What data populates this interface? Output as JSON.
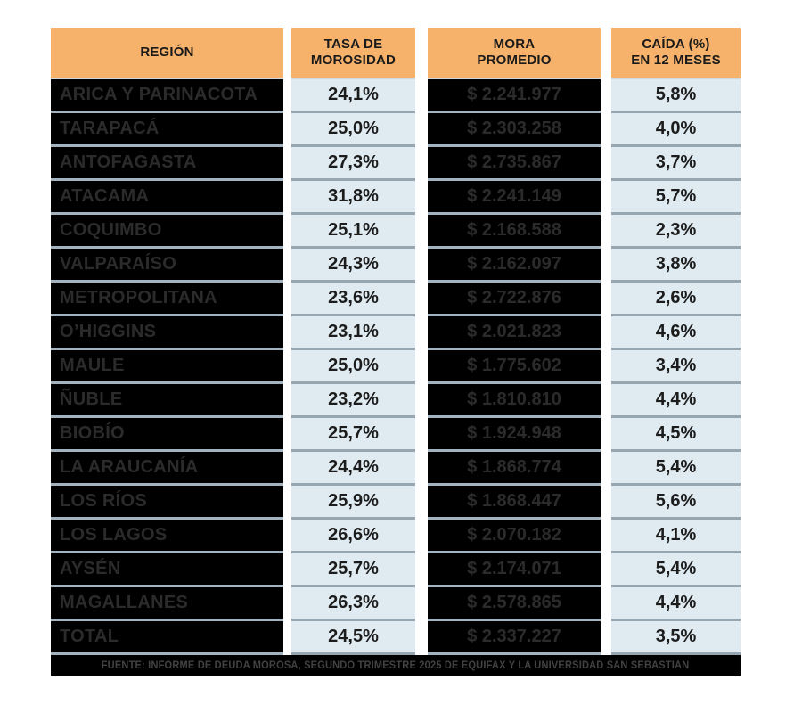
{
  "table": {
    "headers": [
      {
        "id": "region",
        "label": "REGIÓN"
      },
      {
        "id": "tasa",
        "label": "TASA DE\nMOROSIDAD"
      },
      {
        "id": "mora",
        "label": "MORA\nPROMEDIO"
      },
      {
        "id": "caida",
        "label": "CAÍDA (%)\nEN 12 MESES"
      }
    ],
    "rows": [
      {
        "region": "ARICA Y PARINACOTA",
        "tasa": "24,1%",
        "mora": "$ 2.241.977",
        "caida": "5,8%"
      },
      {
        "region": "TARAPACÁ",
        "tasa": "25,0%",
        "mora": "$ 2.303.258",
        "caida": "4,0%"
      },
      {
        "region": "ANTOFAGASTA",
        "tasa": "27,3%",
        "mora": "$ 2.735.867",
        "caida": "3,7%"
      },
      {
        "region": "ATACAMA",
        "tasa": "31,8%",
        "mora": "$ 2.241.149",
        "caida": "5,7%"
      },
      {
        "region": "COQUIMBO",
        "tasa": "25,1%",
        "mora": "$ 2.168.588",
        "caida": "2,3%"
      },
      {
        "region": "VALPARAÍSO",
        "tasa": "24,3%",
        "mora": "$ 2.162.097",
        "caida": "3,8%"
      },
      {
        "region": "METROPOLITANA",
        "tasa": "23,6%",
        "mora": "$ 2.722.876",
        "caida": "2,6%"
      },
      {
        "region": "O’HIGGINS",
        "tasa": "23,1%",
        "mora": "$ 2.021.823",
        "caida": "4,6%"
      },
      {
        "region": "MAULE",
        "tasa": "25,0%",
        "mora": "$ 1.775.602",
        "caida": "3,4%"
      },
      {
        "region": "ÑUBLE",
        "tasa": "23,2%",
        "mora": "$ 1.810.810",
        "caida": "4,4%"
      },
      {
        "region": "BIOBÍO",
        "tasa": "25,7%",
        "mora": "$ 1.924.948",
        "caida": "4,5%"
      },
      {
        "region": "LA ARAUCANÍA",
        "tasa": "24,4%",
        "mora": "$ 1.868.774",
        "caida": "5,4%"
      },
      {
        "region": "LOS RÍOS",
        "tasa": "25,9%",
        "mora": "$ 1.868.447",
        "caida": "5,6%"
      },
      {
        "region": "LOS LAGOS",
        "tasa": "26,6%",
        "mora": "$ 2.070.182",
        "caida": "4,1%"
      },
      {
        "region": "AYSÉN",
        "tasa": "25,7%",
        "mora": "$ 2.174.071",
        "caida": "5,4%"
      },
      {
        "region": "MAGALLANES",
        "tasa": "26,3%",
        "mora": "$ 2.578.865",
        "caida": "4,4%"
      },
      {
        "region": "TOTAL",
        "tasa": "24,5%",
        "mora": "$ 2.337.227",
        "caida": "3,5%"
      }
    ]
  },
  "footer": {
    "source": "FUENTE: INFORME DE DEUDA MOROSA, SEGUNDO TRIMESTRE 2025 DE EQUIFAX Y LA UNIVERSIDAD SAN SEBASTIÁN"
  },
  "colors": {
    "header_bg": "#F6B26B",
    "dark_cell_bg": "#000000",
    "dark_cell_text": "#2B2B2B",
    "light_cell_bg": "#DFEBF1",
    "light_cell_text": "#1C1C1C",
    "row_separator": "#9FAFBA",
    "footer_bg": "#000000",
    "footer_text": "#424242",
    "page_bg": "#FFFFFF"
  },
  "chart_data": {
    "type": "table",
    "title": "",
    "columns": [
      "REGIÓN",
      "TASA DE MOROSIDAD",
      "MORA PROMEDIO",
      "CAÍDA (%) EN 12 MESES"
    ],
    "rows": [
      {
        "region": "ARICA Y PARINACOTA",
        "tasa_morosidad_pct": 24.1,
        "mora_promedio_clp": 2241977,
        "caida_12m_pct": 5.8
      },
      {
        "region": "TARAPACÁ",
        "tasa_morosidad_pct": 25.0,
        "mora_promedio_clp": 2303258,
        "caida_12m_pct": 4.0
      },
      {
        "region": "ANTOFAGASTA",
        "tasa_morosidad_pct": 27.3,
        "mora_promedio_clp": 2735867,
        "caida_12m_pct": 3.7
      },
      {
        "region": "ATACAMA",
        "tasa_morosidad_pct": 31.8,
        "mora_promedio_clp": 2241149,
        "caida_12m_pct": 5.7
      },
      {
        "region": "COQUIMBO",
        "tasa_morosidad_pct": 25.1,
        "mora_promedio_clp": 2168588,
        "caida_12m_pct": 2.3
      },
      {
        "region": "VALPARAÍSO",
        "tasa_morosidad_pct": 24.3,
        "mora_promedio_clp": 2162097,
        "caida_12m_pct": 3.8
      },
      {
        "region": "METROPOLITANA",
        "tasa_morosidad_pct": 23.6,
        "mora_promedio_clp": 2722876,
        "caida_12m_pct": 2.6
      },
      {
        "region": "O’HIGGINS",
        "tasa_morosidad_pct": 23.1,
        "mora_promedio_clp": 2021823,
        "caida_12m_pct": 4.6
      },
      {
        "region": "MAULE",
        "tasa_morosidad_pct": 25.0,
        "mora_promedio_clp": 1775602,
        "caida_12m_pct": 3.4
      },
      {
        "region": "ÑUBLE",
        "tasa_morosidad_pct": 23.2,
        "mora_promedio_clp": 1810810,
        "caida_12m_pct": 4.4
      },
      {
        "region": "BIOBÍO",
        "tasa_morosidad_pct": 25.7,
        "mora_promedio_clp": 1924948,
        "caida_12m_pct": 4.5
      },
      {
        "region": "LA ARAUCANÍA",
        "tasa_morosidad_pct": 24.4,
        "mora_promedio_clp": 1868774,
        "caida_12m_pct": 5.4
      },
      {
        "region": "LOS RÍOS",
        "tasa_morosidad_pct": 25.9,
        "mora_promedio_clp": 1868447,
        "caida_12m_pct": 5.6
      },
      {
        "region": "LOS LAGOS",
        "tasa_morosidad_pct": 26.6,
        "mora_promedio_clp": 2070182,
        "caida_12m_pct": 4.1
      },
      {
        "region": "AYSÉN",
        "tasa_morosidad_pct": 25.7,
        "mora_promedio_clp": 2174071,
        "caida_12m_pct": 5.4
      },
      {
        "region": "MAGALLANES",
        "tasa_morosidad_pct": 26.3,
        "mora_promedio_clp": 2578865,
        "caida_12m_pct": 4.4
      },
      {
        "region": "TOTAL",
        "tasa_morosidad_pct": 24.5,
        "mora_promedio_clp": 2337227,
        "caida_12m_pct": 3.5
      }
    ],
    "source_note": "FUENTE: INFORME DE DEUDA MOROSA, SEGUNDO TRIMESTRE 2025 DE EQUIFAX Y LA UNIVERSIDAD SAN SEBASTIÁN"
  }
}
